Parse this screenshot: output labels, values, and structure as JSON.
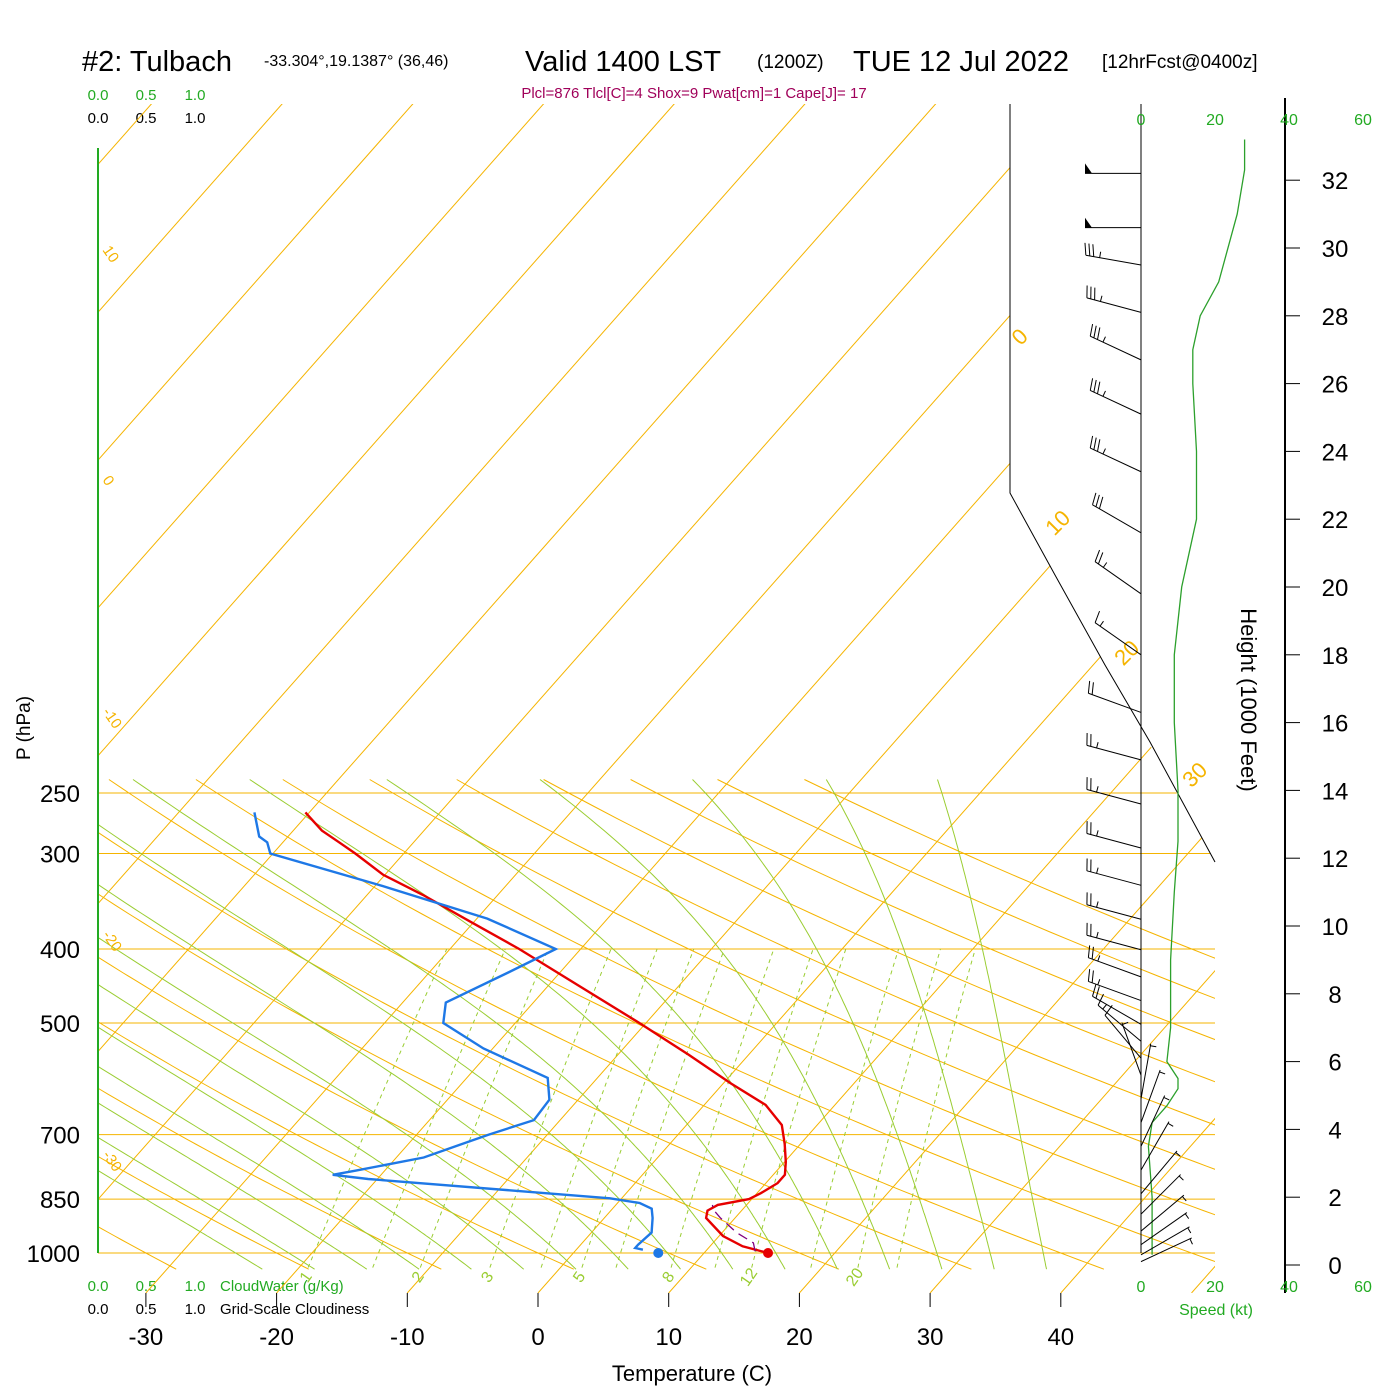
{
  "header": {
    "station": "#2: Tulbach",
    "coords": "-33.304°,19.1387° (36,46)",
    "valid": "Valid 1400 LST",
    "utc": "(1200Z)",
    "date": "TUE 12 Jul 2022",
    "forecast": "[12hrFcst@0400z]",
    "indices": "Plcl=876 Tlcl[C]=4 Shox=9 Pwat[cm]=1 Cape[J]= 17"
  },
  "colors": {
    "isotherm": "#f5b400",
    "dry_adiabat": "#f5b400",
    "moist_adiabat": "#9acd32",
    "mixing_ratio": "#9acd32",
    "temperature": "#e60000",
    "dewpoint": "#1e78e6",
    "parcel": "#800080",
    "wind_speed": "#2ca02c",
    "indices": "#a0005a",
    "green_text": "#22aa22"
  },
  "labels": {
    "cloudwater_scale": [
      "0.0",
      "0.5",
      "1.0"
    ],
    "cloudiness_scale": [
      "0.0",
      "0.5",
      "1.0"
    ],
    "cloudwater_title": "CloudWater (g/Kg)",
    "cloudiness_title": "Grid-Scale Cloudiness",
    "speed_title": "Speed (kt)",
    "speed_ticks": [
      "0",
      "20",
      "40",
      "60"
    ],
    "height_title": "Height (1000 Feet)",
    "height_ticks": [
      "0",
      "2",
      "4",
      "6",
      "8",
      "10",
      "12",
      "14",
      "16",
      "18",
      "20",
      "22",
      "24",
      "26",
      "28",
      "30",
      "32"
    ]
  },
  "chart_data": {
    "type": "line",
    "chart_kind": "skew-T log-P sounding",
    "xlabel": "Temperature (C)",
    "ylabel": "P (hPa)",
    "x_ticks": [
      -30,
      -20,
      -10,
      0,
      10,
      20,
      30,
      40
    ],
    "pressure_ticks": [
      250,
      300,
      400,
      500,
      700,
      850,
      1000
    ],
    "xlim_at_1000hPa": [
      -33.5,
      36
    ],
    "ylim_hPa": [
      1000,
      250
    ],
    "y_scale": "log",
    "dry_adiabat_labels": [
      "10",
      "0",
      "-10",
      "-20",
      "-30"
    ],
    "isotherm_edge_labels": [
      "0",
      "10",
      "20",
      "30"
    ],
    "mixing_ratio_labels": [
      "1",
      "2",
      "3",
      "5",
      "8",
      "12",
      "20"
    ],
    "series": [
      {
        "name": "temperature",
        "points": [
          {
            "p": 1000,
            "t": 17.6
          },
          {
            "p": 980,
            "t": 15.2
          },
          {
            "p": 950,
            "t": 13.0
          },
          {
            "p": 900,
            "t": 10.5
          },
          {
            "p": 880,
            "t": 10.1
          },
          {
            "p": 865,
            "t": 10.5
          },
          {
            "p": 850,
            "t": 12.5
          },
          {
            "p": 835,
            "t": 13.0
          },
          {
            "p": 810,
            "t": 13.6
          },
          {
            "p": 790,
            "t": 13.6
          },
          {
            "p": 760,
            "t": 12.8
          },
          {
            "p": 720,
            "t": 11.5
          },
          {
            "p": 680,
            "t": 10.0
          },
          {
            "p": 640,
            "t": 7.4
          },
          {
            "p": 600,
            "t": 3.3
          },
          {
            "p": 550,
            "t": -1.9
          },
          {
            "p": 500,
            "t": -7.8
          },
          {
            "p": 450,
            "t": -14.5
          },
          {
            "p": 400,
            "t": -22.0
          },
          {
            "p": 370,
            "t": -27.3
          },
          {
            "p": 340,
            "t": -33.0
          },
          {
            "p": 320,
            "t": -37.4
          },
          {
            "p": 300,
            "t": -41.0
          },
          {
            "p": 290,
            "t": -43.0
          },
          {
            "p": 280,
            "t": -45.1
          },
          {
            "p": 265,
            "t": -47.6
          }
        ]
      },
      {
        "name": "dewpoint",
        "points": [
          {
            "p": 990,
            "t": 7.8
          },
          {
            "p": 985,
            "t": 7.1
          },
          {
            "p": 975,
            "t": 7.1
          },
          {
            "p": 940,
            "t": 7.3
          },
          {
            "p": 900,
            "t": 6.4
          },
          {
            "p": 875,
            "t": 5.7
          },
          {
            "p": 860,
            "t": 4.4
          },
          {
            "p": 848,
            "t": 1.8
          },
          {
            "p": 800,
            "t": -18.0
          },
          {
            "p": 790,
            "t": -21.0
          },
          {
            "p": 780,
            "t": -19.5
          },
          {
            "p": 750,
            "t": -15.2
          },
          {
            "p": 700,
            "t": -11.8
          },
          {
            "p": 670,
            "t": -9.3
          },
          {
            "p": 630,
            "t": -9.5
          },
          {
            "p": 590,
            "t": -11.1
          },
          {
            "p": 540,
            "t": -18.0
          },
          {
            "p": 500,
            "t": -22.8
          },
          {
            "p": 470,
            "t": -24.0
          },
          {
            "p": 430,
            "t": -21.3
          },
          {
            "p": 400,
            "t": -19.2
          },
          {
            "p": 365,
            "t": -26.5
          },
          {
            "p": 330,
            "t": -37.0
          },
          {
            "p": 300,
            "t": -47.5
          },
          {
            "p": 290,
            "t": -48.5
          },
          {
            "p": 285,
            "t": -49.5
          },
          {
            "p": 265,
            "t": -51.5
          }
        ]
      },
      {
        "name": "parcel",
        "points": [
          {
            "p": 995,
            "t": 16.5
          },
          {
            "p": 970,
            "t": 15.8
          },
          {
            "p": 940,
            "t": 13.8
          },
          {
            "p": 900,
            "t": 11.6
          },
          {
            "p": 876,
            "t": 10.4
          },
          {
            "p": 865,
            "t": 10.1
          }
        ]
      }
    ],
    "surface_points": [
      {
        "name": "temperature",
        "p": 1000,
        "t": 17.6
      },
      {
        "name": "dewpoint",
        "p": 1000,
        "t": 9.2
      }
    ],
    "wind_speed_profile_kt": [
      {
        "h_kft": 0.3,
        "spd": 3
      },
      {
        "h_kft": 2,
        "spd": 3
      },
      {
        "h_kft": 3.5,
        "spd": 2
      },
      {
        "h_kft": 4.2,
        "spd": 3
      },
      {
        "h_kft": 4.7,
        "spd": 7
      },
      {
        "h_kft": 5.2,
        "spd": 10
      },
      {
        "h_kft": 5.5,
        "spd": 10
      },
      {
        "h_kft": 6.0,
        "spd": 7
      },
      {
        "h_kft": 7.0,
        "spd": 8
      },
      {
        "h_kft": 9.0,
        "spd": 8
      },
      {
        "h_kft": 11.0,
        "spd": 9
      },
      {
        "h_kft": 12.5,
        "spd": 10
      },
      {
        "h_kft": 14.0,
        "spd": 10
      },
      {
        "h_kft": 16.0,
        "spd": 9
      },
      {
        "h_kft": 18.0,
        "spd": 9
      },
      {
        "h_kft": 20.0,
        "spd": 11
      },
      {
        "h_kft": 22.0,
        "spd": 15
      },
      {
        "h_kft": 24.0,
        "spd": 15
      },
      {
        "h_kft": 26.0,
        "spd": 14
      },
      {
        "h_kft": 27.0,
        "spd": 14
      },
      {
        "h_kft": 28.0,
        "spd": 16
      },
      {
        "h_kft": 29.0,
        "spd": 21
      },
      {
        "h_kft": 31.0,
        "spd": 26
      },
      {
        "h_kft": 32.3,
        "spd": 28
      },
      {
        "h_kft": 33.2,
        "spd": 28
      }
    ],
    "wind_barbs": [
      {
        "h_kft": 32.2,
        "dir": 270,
        "spd": 50
      },
      {
        "h_kft": 30.6,
        "dir": 270,
        "spd": 50
      },
      {
        "h_kft": 29.5,
        "dir": 280,
        "spd": 35
      },
      {
        "h_kft": 28.1,
        "dir": 285,
        "spd": 35
      },
      {
        "h_kft": 26.7,
        "dir": 295,
        "spd": 35
      },
      {
        "h_kft": 25.1,
        "dir": 295,
        "spd": 35
      },
      {
        "h_kft": 23.4,
        "dir": 295,
        "spd": 35
      },
      {
        "h_kft": 21.6,
        "dir": 300,
        "spd": 30
      },
      {
        "h_kft": 19.8,
        "dir": 305,
        "spd": 25
      },
      {
        "h_kft": 18.0,
        "dir": 305,
        "spd": 15
      },
      {
        "h_kft": 16.3,
        "dir": 290,
        "spd": 20
      },
      {
        "h_kft": 14.9,
        "dir": 285,
        "spd": 25
      },
      {
        "h_kft": 13.6,
        "dir": 285,
        "spd": 25
      },
      {
        "h_kft": 12.3,
        "dir": 285,
        "spd": 25
      },
      {
        "h_kft": 11.2,
        "dir": 285,
        "spd": 25
      },
      {
        "h_kft": 10.2,
        "dir": 285,
        "spd": 25
      },
      {
        "h_kft": 9.3,
        "dir": 285,
        "spd": 25
      },
      {
        "h_kft": 8.5,
        "dir": 290,
        "spd": 25
      },
      {
        "h_kft": 7.8,
        "dir": 290,
        "spd": 25
      },
      {
        "h_kft": 7.1,
        "dir": 300,
        "spd": 20
      },
      {
        "h_kft": 6.6,
        "dir": 310,
        "spd": 15
      },
      {
        "h_kft": 6.1,
        "dir": 320,
        "spd": 10
      },
      {
        "h_kft": 5.6,
        "dir": 340,
        "spd": 5
      },
      {
        "h_kft": 4.9,
        "dir": 10,
        "spd": 5
      },
      {
        "h_kft": 4.2,
        "dir": 20,
        "spd": 5
      },
      {
        "h_kft": 3.5,
        "dir": 25,
        "spd": 5
      },
      {
        "h_kft": 2.8,
        "dir": 30,
        "spd": 5
      },
      {
        "h_kft": 2.1,
        "dir": 40,
        "spd": 5
      },
      {
        "h_kft": 1.5,
        "dir": 45,
        "spd": 5
      },
      {
        "h_kft": 1.0,
        "dir": 50,
        "spd": 5
      },
      {
        "h_kft": 0.6,
        "dir": 55,
        "spd": 5
      },
      {
        "h_kft": 0.3,
        "dir": 60,
        "spd": 5
      },
      {
        "h_kft": 0.1,
        "dir": 65,
        "spd": 5
      }
    ]
  }
}
